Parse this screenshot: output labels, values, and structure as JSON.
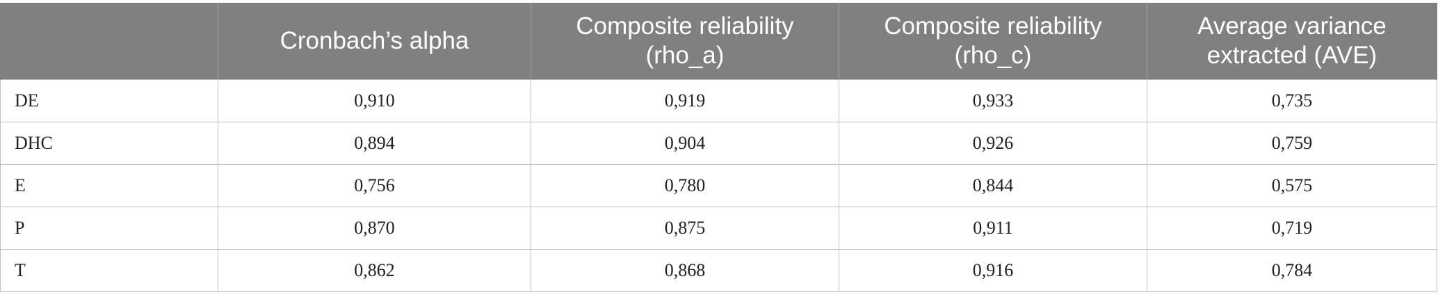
{
  "table": {
    "columns": [
      {
        "lines": [
          ""
        ]
      },
      {
        "lines": [
          "Cronbach’s alpha"
        ]
      },
      {
        "lines": [
          "Composite reliability",
          "(rho_a)"
        ]
      },
      {
        "lines": [
          "Composite reliability",
          "(rho_c)"
        ]
      },
      {
        "lines": [
          "Average variance",
          "extracted (AVE)"
        ]
      }
    ],
    "rows": [
      {
        "label": "DE",
        "cells": [
          "0,910",
          "0,919",
          "0,933",
          "0,735"
        ]
      },
      {
        "label": "DHC",
        "cells": [
          "0,894",
          "0,904",
          "0,926",
          "0,759"
        ]
      },
      {
        "label": "E",
        "cells": [
          "0,756",
          "0,780",
          "0,844",
          "0,575"
        ]
      },
      {
        "label": "P",
        "cells": [
          "0,870",
          "0,875",
          "0,911",
          "0,719"
        ]
      },
      {
        "label": "T",
        "cells": [
          "0,862",
          "0,868",
          "0,916",
          "0,784"
        ]
      }
    ]
  },
  "colors": {
    "header_background": "#808080",
    "header_text": "#ffffff",
    "grid_line": "#bfbfbf"
  }
}
